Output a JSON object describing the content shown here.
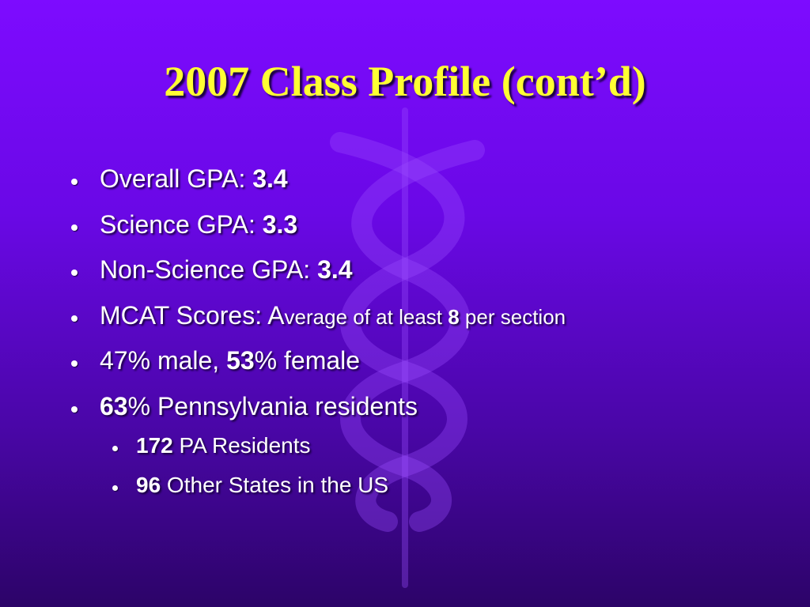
{
  "title": "2007 Class Profile (cont’d)",
  "bullets": [
    {
      "level": 1,
      "parts": [
        {
          "text": "Overall GPA: "
        },
        {
          "text": "3.4",
          "bold": true
        }
      ]
    },
    {
      "level": 1,
      "parts": [
        {
          "text": "Science GPA: "
        },
        {
          "text": "3.3",
          "bold": true
        }
      ]
    },
    {
      "level": 1,
      "parts": [
        {
          "text": "Non-Science GPA: "
        },
        {
          "text": "3.4",
          "bold": true
        }
      ]
    },
    {
      "level": 1,
      "parts": [
        {
          "text": "MCAT Scores: A"
        },
        {
          "text": "verage of at least ",
          "small": true
        },
        {
          "text": "8",
          "bold": true,
          "small": true
        },
        {
          "text": " per section",
          "small": true
        }
      ]
    },
    {
      "level": 1,
      "parts": [
        {
          "text": "47% male, "
        },
        {
          "text": "53",
          "bold": true
        },
        {
          "text": "% female"
        }
      ]
    },
    {
      "level": 1,
      "parts": [
        {
          "text": "63",
          "bold": true
        },
        {
          "text": "% Pennsylvania residents"
        }
      ]
    },
    {
      "level": 2,
      "parts": [
        {
          "text": "172",
          "bold": true
        },
        {
          "text": " PA Residents"
        }
      ]
    },
    {
      "level": 2,
      "parts": [
        {
          "text": "96",
          "bold": true
        },
        {
          "text": " Other States in the US"
        }
      ]
    }
  ]
}
